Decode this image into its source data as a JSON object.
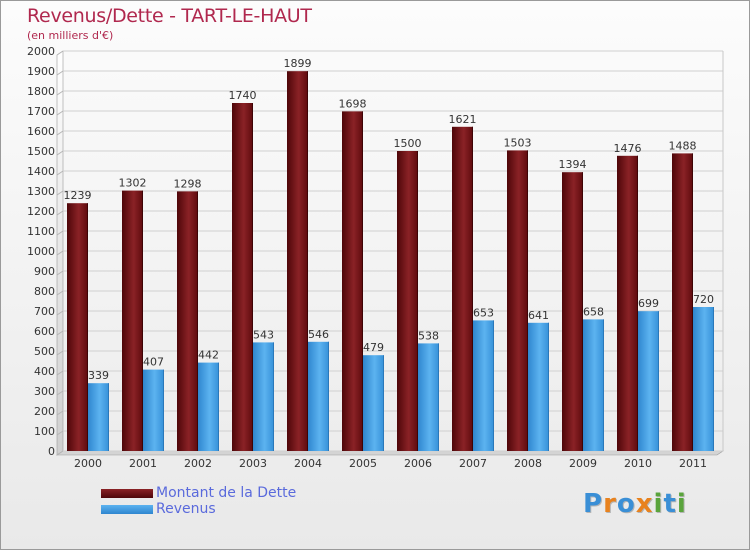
{
  "header": {
    "title": "Revenus/Dette - TART-LE-HAUT",
    "subtitle": "(en milliers d'€)"
  },
  "legend": {
    "items": [
      {
        "label": "Montant de la Dette",
        "color": "#6b0e12"
      },
      {
        "label": "Revenus",
        "color": "#3a97de"
      }
    ]
  },
  "logo": {
    "text": "Proxiti"
  },
  "chart_data": {
    "type": "bar",
    "categories": [
      "2000",
      "2001",
      "2002",
      "2003",
      "2004",
      "2005",
      "2006",
      "2007",
      "2008",
      "2009",
      "2010",
      "2011"
    ],
    "series": [
      {
        "name": "Montant de la Dette",
        "values": [
          1239,
          1302,
          1298,
          1740,
          1899,
          1698,
          1500,
          1621,
          1503,
          1394,
          1476,
          1488
        ],
        "color": "#6b0e12"
      },
      {
        "name": "Revenus",
        "values": [
          339,
          407,
          442,
          543,
          546,
          479,
          538,
          653,
          641,
          658,
          699,
          720
        ],
        "color": "#3a97de"
      }
    ],
    "title": "Revenus/Dette - TART-LE-HAUT",
    "ylabel": "(en milliers d'€)",
    "ylim": [
      0,
      2000
    ],
    "yticks": [
      0,
      100,
      200,
      300,
      400,
      500,
      600,
      700,
      800,
      900,
      1000,
      1100,
      1200,
      1300,
      1400,
      1500,
      1600,
      1700,
      1800,
      1900,
      2000
    ],
    "grid": true,
    "legend_position": "bottom-left"
  }
}
